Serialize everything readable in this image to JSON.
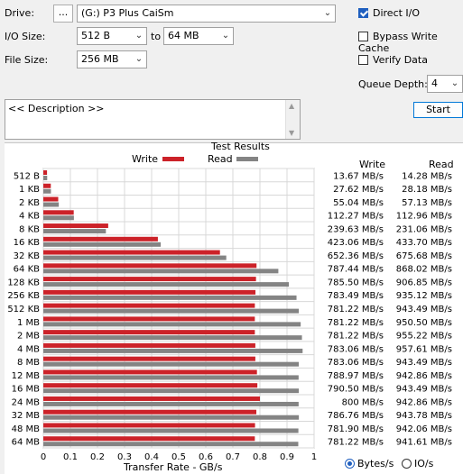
{
  "toolbar": {
    "drive_label": "Drive:",
    "browse_label": "...",
    "drive_value": "(G:) P3 Plus CaiSm",
    "io_size_label": "I/O Size:",
    "io_from": "512 B",
    "to_label": "to",
    "io_to": "64 MB",
    "file_size_label": "File Size:",
    "file_size": "256 MB",
    "direct_io": "Direct I/O",
    "bypass_write_cache": "Bypass Write Cache",
    "verify_data": "Verify Data",
    "queue_depth_label": "Queue Depth:",
    "queue_depth": "4",
    "start_label": "Start",
    "description": "<< Description >>"
  },
  "results": {
    "col_write": "Write",
    "col_read": "Read",
    "units_bytes": "Bytes/s",
    "units_io": "IO/s"
  },
  "chart_data": {
    "type": "bar",
    "title": "Test Results",
    "xlabel": "Transfer Rate - GB/s",
    "xlim": [
      0,
      1
    ],
    "xticks": [
      "0",
      "0.1",
      "0.2",
      "0.3",
      "0.4",
      "0.5",
      "0.6",
      "0.7",
      "0.8",
      "0.9",
      "1"
    ],
    "legend": [
      "Write",
      "Read"
    ],
    "colors": {
      "write": "#cc2229",
      "read": "#848484"
    },
    "categories": [
      "512 B",
      "1 KB",
      "2 KB",
      "4 KB",
      "8 KB",
      "16 KB",
      "32 KB",
      "64 KB",
      "128 KB",
      "256 KB",
      "512 KB",
      "1 MB",
      "2 MB",
      "4 MB",
      "8 MB",
      "12 MB",
      "16 MB",
      "24 MB",
      "32 MB",
      "48 MB",
      "64 MB"
    ],
    "series": [
      {
        "name": "Write",
        "values": [
          0.01367,
          0.02762,
          0.05504,
          0.11227,
          0.23963,
          0.42306,
          0.65236,
          0.78744,
          0.7855,
          0.78349,
          0.78122,
          0.78122,
          0.78122,
          0.78306,
          0.78306,
          0.78897,
          0.7905,
          0.8,
          0.78676,
          0.7819,
          0.78122
        ]
      },
      {
        "name": "Read",
        "values": [
          0.01428,
          0.02818,
          0.05713,
          0.11296,
          0.23106,
          0.4337,
          0.67568,
          0.86802,
          0.90685,
          0.93512,
          0.94349,
          0.9505,
          0.95522,
          0.95761,
          0.94349,
          0.94286,
          0.94349,
          0.94286,
          0.94378,
          0.94206,
          0.94161
        ]
      }
    ],
    "write_labels": [
      "13.67 MB/s",
      "27.62 MB/s",
      "55.04 MB/s",
      "112.27 MB/s",
      "239.63 MB/s",
      "423.06 MB/s",
      "652.36 MB/s",
      "787.44 MB/s",
      "785.50 MB/s",
      "783.49 MB/s",
      "781.22 MB/s",
      "781.22 MB/s",
      "781.22 MB/s",
      "783.06 MB/s",
      "783.06 MB/s",
      "788.97 MB/s",
      "790.50 MB/s",
      "800 MB/s",
      "786.76 MB/s",
      "781.90 MB/s",
      "781.22 MB/s"
    ],
    "read_labels": [
      "14.28 MB/s",
      "28.18 MB/s",
      "57.13 MB/s",
      "112.96 MB/s",
      "231.06 MB/s",
      "433.70 MB/s",
      "675.68 MB/s",
      "868.02 MB/s",
      "906.85 MB/s",
      "935.12 MB/s",
      "943.49 MB/s",
      "950.50 MB/s",
      "955.22 MB/s",
      "957.61 MB/s",
      "943.49 MB/s",
      "942.86 MB/s",
      "943.49 MB/s",
      "942.86 MB/s",
      "943.78 MB/s",
      "942.06 MB/s",
      "941.61 MB/s"
    ]
  }
}
